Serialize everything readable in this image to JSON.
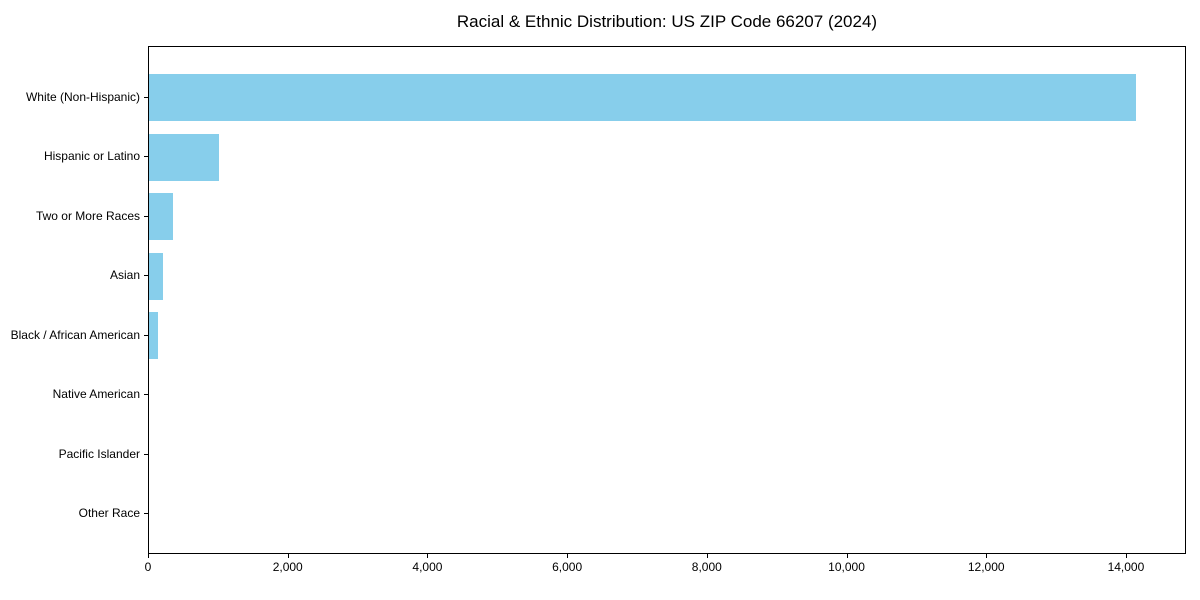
{
  "chart_data": {
    "type": "bar",
    "orientation": "horizontal",
    "title": "Racial & Ethnic Distribution: US ZIP Code 66207 (2024)",
    "categories": [
      "White (Non-Hispanic)",
      "Hispanic or Latino",
      "Two or More Races",
      "Asian",
      "Black / African American",
      "Native American",
      "Pacific Islander",
      "Other Race"
    ],
    "values": [
      14150,
      1000,
      345,
      195,
      125,
      0,
      0,
      0
    ],
    "xlabel": "",
    "ylabel": "",
    "xlim": [
      0,
      14860
    ],
    "x_ticks": [
      0,
      2000,
      4000,
      6000,
      8000,
      10000,
      12000,
      14000
    ],
    "x_tick_labels": [
      "0",
      "2,000",
      "4,000",
      "6,000",
      "8,000",
      "10,000",
      "12,000",
      "14,000"
    ],
    "bar_color": "#87CEEB",
    "spine_color": "#000000",
    "text_color": "#000000",
    "background_color": "#ffffff",
    "grid": false,
    "legend": null
  }
}
